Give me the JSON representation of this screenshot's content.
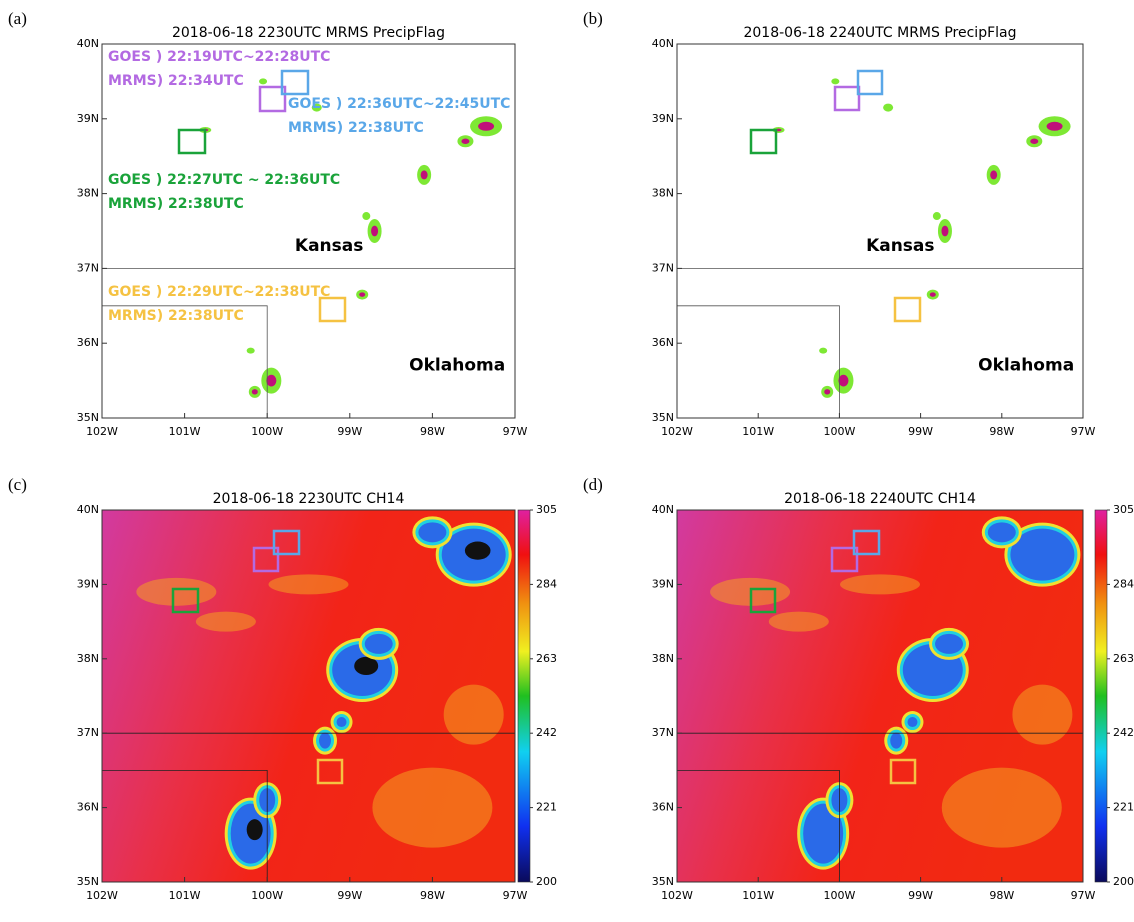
{
  "panels": [
    {
      "letter": "(a)",
      "title": "2018-06-18 2230UTC MRMS PrecipFlag",
      "lat_ticks": [
        "40N",
        "39N",
        "38N",
        "37N",
        "36N",
        "35N"
      ],
      "lon_ticks": [
        "102W",
        "101W",
        "100W",
        "99W",
        "98W",
        "97W"
      ],
      "states": [
        "Kansas",
        "Oklahoma"
      ],
      "annotations": [
        {
          "color": "#b36ae2",
          "lines": [
            "GOES  ) 22:19UTC~22:28UTC",
            "MRMS) 22:34UTC"
          ]
        },
        {
          "color": "#5aa7e8",
          "lines": [
            "GOES  ) 22:36UTC~22:45UTC",
            "MRMS) 22:38UTC"
          ]
        },
        {
          "color": "#1aa33a",
          "lines": [
            "GOES  ) 22:27UTC ~ 22:36UTC",
            "MRMS) 22:38UTC"
          ]
        },
        {
          "color": "#f5c242",
          "lines": [
            "GOES  ) 22:29UTC~22:38UTC",
            "MRMS) 22:38UTC"
          ]
        }
      ]
    },
    {
      "letter": "(b)",
      "title": "2018-06-18 2240UTC MRMS PrecipFlag",
      "lat_ticks": [
        "40N",
        "39N",
        "38N",
        "37N",
        "36N",
        "35N"
      ],
      "lon_ticks": [
        "102W",
        "101W",
        "100W",
        "99W",
        "98W",
        "97W"
      ],
      "states": [
        "Kansas",
        "Oklahoma"
      ]
    },
    {
      "letter": "(c)",
      "title": "2018-06-18 2230UTC CH14",
      "lat_ticks": [
        "40N",
        "39N",
        "38N",
        "37N",
        "36N",
        "35N"
      ],
      "lon_ticks": [
        "102W",
        "101W",
        "100W",
        "99W",
        "98W",
        "97W"
      ],
      "colorbar": {
        "lim": [
          200,
          305
        ],
        "ticks": [
          200,
          221,
          242,
          263,
          284,
          305
        ]
      }
    },
    {
      "letter": "(d)",
      "title": "2018-06-18 2240UTC CH14",
      "lat_ticks": [
        "40N",
        "39N",
        "38N",
        "37N",
        "36N",
        "35N"
      ],
      "lon_ticks": [
        "102W",
        "101W",
        "100W",
        "99W",
        "98W",
        "97W"
      ],
      "colorbar": {
        "lim": [
          200,
          305
        ],
        "ticks": [
          200,
          221,
          242,
          263,
          284,
          305
        ]
      }
    }
  ]
}
